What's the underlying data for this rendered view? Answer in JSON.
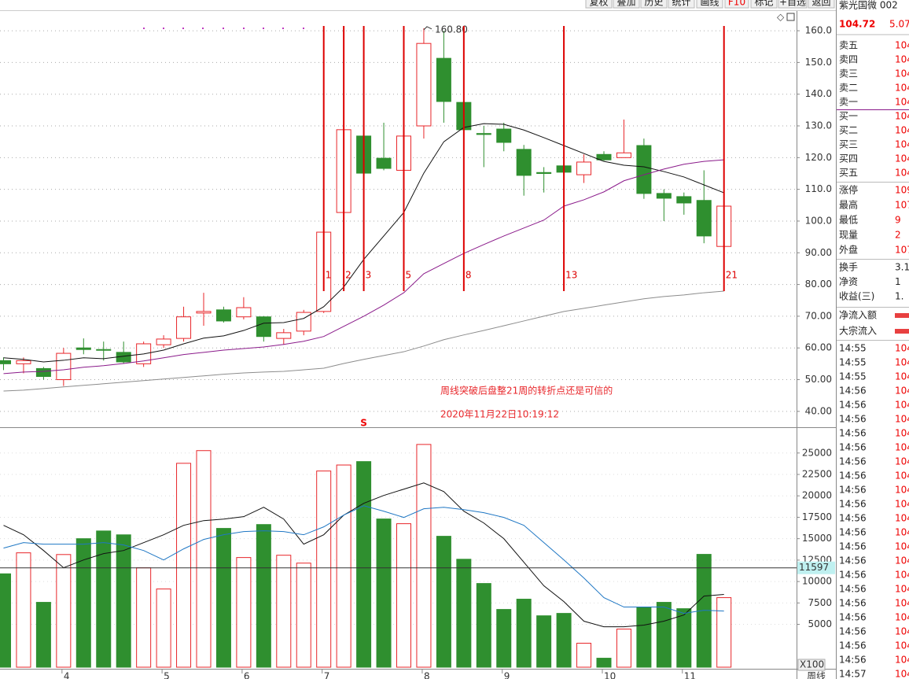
{
  "toolbar": [
    "复权",
    "叠加",
    "历史",
    "统计",
    "画线",
    "F10",
    "标记",
    "+自选",
    "返回"
  ],
  "stock": {
    "name": "紫光国微 002",
    "price": "104.72",
    "change": "5.07"
  },
  "chart_data": [
    {
      "type": "candlestick",
      "up_color": "#e8262a",
      "down_color": "#2f8f2f",
      "open": [
        56,
        55,
        53.5,
        50,
        60,
        59.5,
        58.6,
        55,
        61,
        63,
        71,
        72,
        69.8,
        69.8,
        63,
        65.3,
        71.5,
        102.7,
        126.8,
        119.8,
        116,
        130,
        151.3,
        137.4,
        127.6,
        129,
        122.6,
        115.3,
        117.4,
        114.6,
        121,
        120,
        123.8,
        108.7,
        107.7,
        106.5,
        92
      ],
      "high": [
        57,
        57,
        54,
        60,
        63,
        62,
        62,
        62,
        64,
        73,
        77.4,
        73,
        76,
        70,
        66,
        72,
        97,
        138,
        138,
        131,
        132,
        160.8,
        160,
        142,
        130,
        131,
        124,
        117,
        125,
        121,
        122,
        132,
        126,
        110,
        109,
        116,
        105
      ],
      "low": [
        53,
        52,
        50,
        48,
        58,
        56,
        55,
        54,
        60,
        62,
        67,
        68,
        69,
        62,
        61,
        64,
        71,
        102,
        108,
        116,
        115,
        126,
        131,
        124,
        117,
        122,
        108,
        109,
        114,
        112,
        119,
        120,
        107,
        100,
        102,
        93,
        91
      ],
      "close": [
        55,
        56,
        51,
        58.3,
        59.5,
        59.3,
        55.6,
        61.3,
        62.8,
        69.8,
        71.5,
        68.5,
        72.7,
        63.6,
        64.8,
        71.2,
        96.5,
        128.8,
        115.1,
        116.6,
        126.8,
        156,
        137.7,
        128.8,
        127.3,
        124.8,
        114.4,
        115,
        115.4,
        118.6,
        119.3,
        121.5,
        108.7,
        107.2,
        105.7,
        95.3,
        104.7
      ],
      "high_label_index": 21,
      "high_label": "160.80",
      "ma_lines": [
        {
          "color": "#111111",
          "values": [
            56.9,
            56.4,
            55.6,
            56.1,
            56.9,
            56.6,
            57.4,
            58.1,
            59.3,
            61.3,
            63.1,
            63.8,
            65.5,
            67.8,
            68.0,
            69.3,
            73.0,
            79.2,
            87.9,
            95.3,
            102.7,
            115.1,
            125.0,
            129.5,
            130.7,
            130.5,
            128.7,
            126.3,
            123.8,
            121.3,
            118.8,
            117.6,
            117.1,
            115.6,
            113.9,
            111.4,
            108.9
          ]
        },
        {
          "color": "#8a1a8a",
          "values": [
            51.9,
            52.4,
            52.6,
            53.1,
            53.9,
            54.4,
            55.1,
            55.9,
            56.9,
            57.9,
            58.6,
            59.3,
            59.8,
            60.3,
            61.1,
            62.1,
            63.6,
            66.8,
            70.0,
            73.5,
            77.4,
            83.4,
            86.6,
            89.8,
            92.6,
            95.3,
            97.8,
            100.3,
            104.7,
            106.7,
            109.2,
            112.7,
            114.6,
            116.4,
            117.9,
            118.8,
            119.3
          ]
        },
        {
          "color": "#8c8c8c",
          "values": [
            46.4,
            46.7,
            47.2,
            47.7,
            48.2,
            48.7,
            49.2,
            49.7,
            50.2,
            50.7,
            51.2,
            51.7,
            52.1,
            52.4,
            52.6,
            53.1,
            53.6,
            55.1,
            56.4,
            57.6,
            58.8,
            60.6,
            62.6,
            64.1,
            65.5,
            67.0,
            68.5,
            70.0,
            71.5,
            72.5,
            73.5,
            74.5,
            75.5,
            76.2,
            76.7,
            77.4,
            77.9
          ]
        }
      ],
      "markers": [
        null,
        null,
        null,
        null,
        null,
        null,
        null,
        null,
        null,
        null,
        null,
        null,
        null,
        null,
        null,
        null,
        "1",
        "2",
        "3",
        null,
        "5",
        null,
        null,
        "8",
        null,
        null,
        null,
        null,
        "13",
        null,
        null,
        null,
        null,
        null,
        null,
        null,
        "21"
      ],
      "marker_color": "#dd0000",
      "x_labels": [
        null,
        null,
        null,
        "4",
        null,
        null,
        null,
        null,
        "5",
        null,
        null,
        null,
        "6",
        null,
        null,
        null,
        "7",
        null,
        null,
        null,
        null,
        "8",
        null,
        null,
        null,
        "9",
        null,
        null,
        null,
        null,
        "10",
        null,
        null,
        null,
        "11",
        null,
        null
      ],
      "x_axis_title": "周线",
      "signal_text": "S",
      "annotation": [
        "周线突破后盘整21周的转折点还是可信的",
        "2020年11月22日10:19:12"
      ],
      "ylim": [
        35,
        162
      ],
      "yticks": [
        {
          "value": 40,
          "label": "40.00"
        },
        {
          "value": 50,
          "label": "50.00"
        },
        {
          "value": 60,
          "label": "60.00"
        },
        {
          "value": 70,
          "label": "70.00"
        },
        {
          "value": 80,
          "label": "80.00"
        },
        {
          "value": 90,
          "label": "90.00"
        },
        {
          "value": 100,
          "label": "100.0"
        },
        {
          "value": 110,
          "label": "110.0"
        },
        {
          "value": 120,
          "label": "120.0"
        },
        {
          "value": 130,
          "label": "130.0"
        },
        {
          "value": 140,
          "label": "140.0"
        },
        {
          "value": 150,
          "label": "150.0"
        },
        {
          "value": 160,
          "label": "160.0"
        }
      ],
      "grid": true
    },
    {
      "type": "volume",
      "values": [
        10900,
        13350,
        7570,
        13150,
        15000,
        15900,
        15450,
        11600,
        9130,
        23800,
        25280,
        16200,
        12800,
        16650,
        13070,
        12150,
        22900,
        23600,
        24000,
        17300,
        16750,
        26000,
        15280,
        12600,
        9770,
        6740,
        7940,
        6000,
        6280,
        2800,
        1050,
        4450,
        7020,
        7570,
        6830,
        13170,
        8120
      ],
      "ma_lines": [
        {
          "color": "#111111",
          "values": [
            16560,
            15460,
            13620,
            11610,
            12520,
            13260,
            13620,
            14540,
            15460,
            16560,
            17110,
            17290,
            17570,
            18670,
            17290,
            14360,
            15460,
            17750,
            19130,
            20050,
            20780,
            21510,
            20500,
            18210,
            16830,
            15000,
            12250,
            9500,
            7660,
            5370,
            4720,
            4720,
            4910,
            5370,
            6100,
            8300,
            8490
          ]
        },
        {
          "color": "#1f77c4",
          "values": [
            13900,
            14540,
            14360,
            14360,
            14360,
            14540,
            14270,
            13620,
            12520,
            13810,
            14910,
            15460,
            15830,
            15920,
            15830,
            15460,
            16380,
            17750,
            18850,
            18210,
            17480,
            18490,
            18670,
            18390,
            18030,
            17480,
            16560,
            14540,
            12520,
            10410,
            8120,
            7020,
            7020,
            7020,
            6280,
            6650,
            6560
          ]
        }
      ],
      "ref_line": 11597,
      "unit_label": "X100",
      "ylim": [
        0,
        27000
      ],
      "yticks": [
        5000,
        7500,
        10000,
        12500,
        15000,
        17500,
        20000,
        22500,
        25000
      ],
      "grid": true
    }
  ],
  "quote_panel": {
    "asks": [
      {
        "label": "卖五",
        "value": "104"
      },
      {
        "label": "卖四",
        "value": "104"
      },
      {
        "label": "卖三",
        "value": "104"
      },
      {
        "label": "卖二",
        "value": "104"
      },
      {
        "label": "卖一",
        "value": "104"
      }
    ],
    "bids": [
      {
        "label": "买一",
        "value": "104"
      },
      {
        "label": "买二",
        "value": "104"
      },
      {
        "label": "买三",
        "value": "104"
      },
      {
        "label": "买四",
        "value": "104"
      },
      {
        "label": "买五",
        "value": "104"
      }
    ],
    "stats": [
      {
        "label": "涨停",
        "value": "109"
      },
      {
        "label": "最高",
        "value": "107"
      },
      {
        "label": "最低",
        "value": "9"
      },
      {
        "label": "现量",
        "value": "2"
      },
      {
        "label": "外盘",
        "value": "107"
      }
    ],
    "stats2": [
      {
        "label": "换手",
        "value": "3.1"
      },
      {
        "label": "净资",
        "value": "1"
      },
      {
        "label": "收益(三)",
        "value": "1."
      }
    ],
    "flows": [
      "净流入额",
      "大宗流入"
    ]
  },
  "trades": [
    {
      "time": "14:55",
      "price": "104"
    },
    {
      "time": "14:55",
      "price": "104"
    },
    {
      "time": "14:55",
      "price": "104"
    },
    {
      "time": "14:56",
      "price": "104"
    },
    {
      "time": "14:56",
      "price": "104"
    },
    {
      "time": "14:56",
      "price": "104"
    },
    {
      "time": "14:56",
      "price": "104"
    },
    {
      "time": "14:56",
      "price": "104"
    },
    {
      "time": "14:56",
      "price": "104"
    },
    {
      "time": "14:56",
      "price": "104"
    },
    {
      "time": "14:56",
      "price": "104"
    },
    {
      "time": "14:56",
      "price": "104"
    },
    {
      "time": "14:56",
      "price": "104"
    },
    {
      "time": "14:56",
      "price": "104"
    },
    {
      "time": "14:56",
      "price": "104"
    },
    {
      "time": "14:56",
      "price": "104"
    },
    {
      "time": "14:56",
      "price": "104"
    },
    {
      "time": "14:56",
      "price": "104"
    },
    {
      "time": "14:56",
      "price": "104"
    },
    {
      "time": "14:56",
      "price": "104"
    },
    {
      "time": "14:56",
      "price": "104"
    },
    {
      "time": "14:56",
      "price": "104"
    },
    {
      "time": "14:56",
      "price": "104"
    },
    {
      "time": "14:57",
      "price": "104"
    }
  ]
}
